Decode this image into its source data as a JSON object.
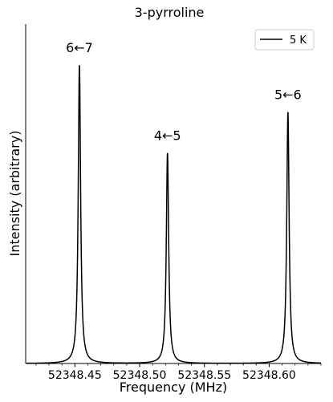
{
  "chart_data": {
    "type": "line",
    "title": "3-pyrroline",
    "xlabel": "Frequency (MHz)",
    "ylabel": "Intensity (arbitrary)",
    "xlim": [
      52348.412,
      52348.64
    ],
    "ylim": [
      0,
      1.08
    ],
    "x_ticks": [
      52348.45,
      52348.5,
      52348.55,
      52348.6
    ],
    "x_tick_labels": [
      "52348.45",
      "52348.50",
      "52348.55",
      "52348.60"
    ],
    "y_ticks_shown": false,
    "grid": false,
    "legend": {
      "position": "top-right",
      "entries": [
        {
          "label": "5 K",
          "color": "#000000"
        }
      ]
    },
    "series": [
      {
        "name": "5 K",
        "color": "#000000",
        "line_shape": "lorentzian",
        "hwhm": 0.0011,
        "baseline": 0.0,
        "peaks": [
          {
            "x": 52348.4535,
            "intensity": 0.95,
            "label": "6←7"
          },
          {
            "x": 52348.5215,
            "intensity": 0.67,
            "label": "4←5"
          },
          {
            "x": 52348.6145,
            "intensity": 0.8,
            "label": "5←6"
          }
        ]
      }
    ]
  }
}
